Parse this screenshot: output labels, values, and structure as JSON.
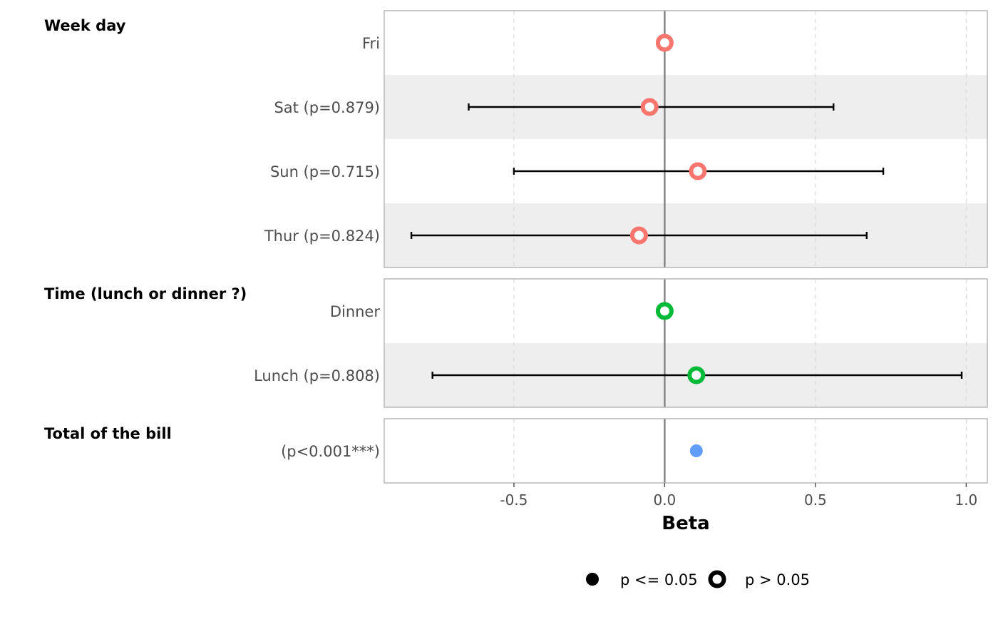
{
  "chart_data": {
    "type": "forest",
    "xlabel": "Beta",
    "xlim": [
      -0.93,
      1.07
    ],
    "xticks": [
      -0.5,
      0.0,
      0.5,
      1.0
    ],
    "xtick_labels": [
      "-0.5",
      "0.0",
      "0.5",
      "1.0"
    ],
    "reference_line": 0,
    "grid": "vertical dashed",
    "legend_position": "bottom",
    "legend": [
      {
        "label": "p <= 0.05",
        "marker": "filled"
      },
      {
        "label": "p > 0.05",
        "marker": "hollow"
      }
    ],
    "groups": [
      {
        "title": "Week day",
        "color": "#F8766D",
        "rows": [
          {
            "label": "Fri",
            "estimate": 0.0,
            "ci": null,
            "significant": false
          },
          {
            "label": "Sat (p=0.879)",
            "estimate": -0.05,
            "ci": [
              -0.65,
              0.56
            ],
            "significant": false
          },
          {
            "label": "Sun (p=0.715)",
            "estimate": 0.11,
            "ci": [
              -0.5,
              0.725
            ],
            "significant": false
          },
          {
            "label": "Thur (p=0.824)",
            "estimate": -0.085,
            "ci": [
              -0.84,
              0.67
            ],
            "significant": false
          }
        ]
      },
      {
        "title": "Time (lunch or dinner ?)",
        "color": "#00BA38",
        "rows": [
          {
            "label": "Dinner",
            "estimate": 0.0,
            "ci": null,
            "significant": false
          },
          {
            "label": "Lunch (p=0.808)",
            "estimate": 0.105,
            "ci": [
              -0.77,
              0.985
            ],
            "significant": false
          }
        ]
      },
      {
        "title": "Total of the bill",
        "color": "#619CFF",
        "rows": [
          {
            "label": "(p<0.001***)",
            "estimate": 0.105,
            "ci": [
              0.08,
              0.13
            ],
            "significant": true
          }
        ]
      }
    ]
  }
}
